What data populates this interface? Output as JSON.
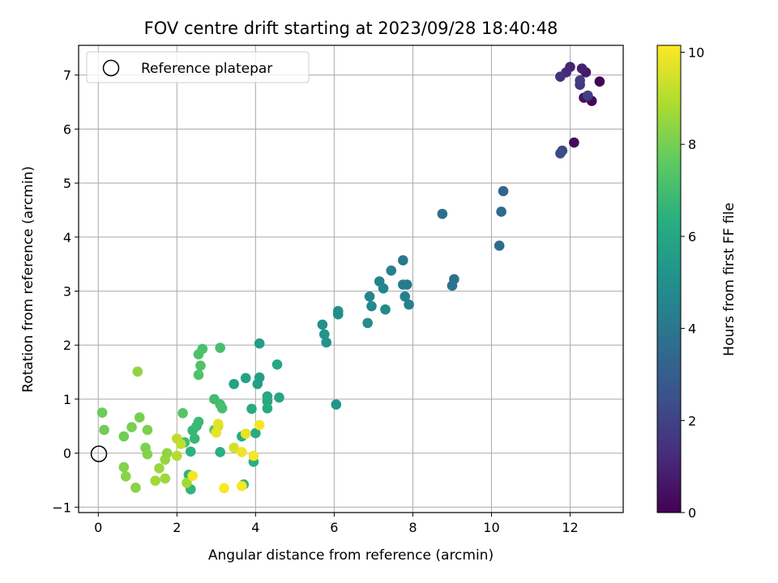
{
  "chart_data": {
    "type": "scatter",
    "title": "FOV centre drift starting at 2023/09/28 18:40:48",
    "xlabel": "Angular distance from reference (arcmin)",
    "ylabel": "Rotation from reference (arcmin)",
    "xlim": [
      -0.5,
      13.35
    ],
    "ylim": [
      -1.1,
      7.55
    ],
    "xticks": [
      "0",
      "2",
      "4",
      "6",
      "8",
      "10",
      "12"
    ],
    "yticks": [
      "−1",
      "0",
      "1",
      "2",
      "3",
      "4",
      "5",
      "6",
      "7"
    ],
    "grid": true,
    "legend": {
      "placement": "top-left",
      "entries": [
        "Reference platepar"
      ]
    },
    "reference_point": {
      "x": 0,
      "y": 0
    },
    "colorbar": {
      "label": "Hours from first FF file",
      "colormap": "viridis",
      "range": [
        0,
        10.15
      ],
      "ticks": [
        "0",
        "2",
        "4",
        "6",
        "8",
        "10"
      ]
    },
    "points": [
      {
        "x": 12.75,
        "y": 6.88,
        "c": 0.1
      },
      {
        "x": 12.55,
        "y": 6.52,
        "c": 0.2
      },
      {
        "x": 12.45,
        "y": 6.6,
        "c": 0.4
      },
      {
        "x": 12.35,
        "y": 6.58,
        "c": 0.5
      },
      {
        "x": 12.4,
        "y": 7.05,
        "c": 0.7
      },
      {
        "x": 12.3,
        "y": 7.12,
        "c": 0.9
      },
      {
        "x": 12.0,
        "y": 7.15,
        "c": 1.0
      },
      {
        "x": 11.9,
        "y": 7.05,
        "c": 1.2
      },
      {
        "x": 11.75,
        "y": 6.97,
        "c": 1.4
      },
      {
        "x": 12.25,
        "y": 6.82,
        "c": 1.6
      },
      {
        "x": 12.25,
        "y": 6.9,
        "c": 1.8
      },
      {
        "x": 12.45,
        "y": 6.62,
        "c": 1.9
      },
      {
        "x": 12.1,
        "y": 5.75,
        "c": 0.3
      },
      {
        "x": 11.8,
        "y": 5.6,
        "c": 2.1
      },
      {
        "x": 11.75,
        "y": 5.55,
        "c": 2.3
      },
      {
        "x": 10.3,
        "y": 4.85,
        "c": 3.3
      },
      {
        "x": 10.25,
        "y": 4.47,
        "c": 3.5
      },
      {
        "x": 10.2,
        "y": 3.84,
        "c": 3.6
      },
      {
        "x": 9.05,
        "y": 3.22,
        "c": 3.8
      },
      {
        "x": 9.0,
        "y": 3.1,
        "c": 3.9
      },
      {
        "x": 8.75,
        "y": 4.43,
        "c": 3.7
      },
      {
        "x": 7.75,
        "y": 3.57,
        "c": 4.0
      },
      {
        "x": 7.85,
        "y": 3.12,
        "c": 4.1
      },
      {
        "x": 7.75,
        "y": 3.12,
        "c": 4.2
      },
      {
        "x": 7.8,
        "y": 2.9,
        "c": 4.3
      },
      {
        "x": 7.9,
        "y": 2.75,
        "c": 4.3
      },
      {
        "x": 7.45,
        "y": 3.38,
        "c": 4.4
      },
      {
        "x": 7.15,
        "y": 3.18,
        "c": 4.5
      },
      {
        "x": 7.25,
        "y": 3.05,
        "c": 4.6
      },
      {
        "x": 6.9,
        "y": 2.9,
        "c": 4.6
      },
      {
        "x": 6.95,
        "y": 2.72,
        "c": 4.7
      },
      {
        "x": 7.3,
        "y": 2.66,
        "c": 4.8
      },
      {
        "x": 6.85,
        "y": 2.41,
        "c": 4.9
      },
      {
        "x": 6.1,
        "y": 2.63,
        "c": 5.0
      },
      {
        "x": 6.1,
        "y": 2.57,
        "c": 5.0
      },
      {
        "x": 5.7,
        "y": 2.38,
        "c": 5.1
      },
      {
        "x": 5.75,
        "y": 2.2,
        "c": 5.2
      },
      {
        "x": 5.8,
        "y": 2.05,
        "c": 5.2
      },
      {
        "x": 6.05,
        "y": 0.9,
        "c": 5.3
      },
      {
        "x": 4.1,
        "y": 2.03,
        "c": 5.6
      },
      {
        "x": 4.1,
        "y": 1.4,
        "c": 5.7
      },
      {
        "x": 4.05,
        "y": 1.28,
        "c": 5.7
      },
      {
        "x": 3.75,
        "y": 1.39,
        "c": 5.8
      },
      {
        "x": 3.45,
        "y": 1.28,
        "c": 5.8
      },
      {
        "x": 4.55,
        "y": 1.64,
        "c": 6.0
      },
      {
        "x": 4.6,
        "y": 1.03,
        "c": 6.0
      },
      {
        "x": 4.3,
        "y": 1.05,
        "c": 6.1
      },
      {
        "x": 4.3,
        "y": 0.96,
        "c": 6.1
      },
      {
        "x": 4.3,
        "y": 0.83,
        "c": 6.2
      },
      {
        "x": 3.9,
        "y": 0.82,
        "c": 6.2
      },
      {
        "x": 4.0,
        "y": 0.37,
        "c": 6.3
      },
      {
        "x": 3.65,
        "y": 0.31,
        "c": 6.3
      },
      {
        "x": 3.95,
        "y": -0.16,
        "c": 6.4
      },
      {
        "x": 3.7,
        "y": -0.58,
        "c": 6.5
      },
      {
        "x": 3.1,
        "y": 0.02,
        "c": 6.4
      },
      {
        "x": 2.35,
        "y": 0.03,
        "c": 6.5
      },
      {
        "x": 2.35,
        "y": -0.67,
        "c": 6.6
      },
      {
        "x": 2.3,
        "y": -0.4,
        "c": 6.6
      },
      {
        "x": 2.45,
        "y": 0.27,
        "c": 6.7
      },
      {
        "x": 2.4,
        "y": 0.42,
        "c": 6.7
      },
      {
        "x": 2.5,
        "y": 0.5,
        "c": 6.8
      },
      {
        "x": 2.55,
        "y": 0.58,
        "c": 6.8
      },
      {
        "x": 2.2,
        "y": 0.2,
        "c": 6.9
      },
      {
        "x": 2.95,
        "y": 1.0,
        "c": 7.0
      },
      {
        "x": 3.1,
        "y": 0.9,
        "c": 7.0
      },
      {
        "x": 3.15,
        "y": 0.83,
        "c": 7.1
      },
      {
        "x": 3.1,
        "y": 1.95,
        "c": 7.1
      },
      {
        "x": 2.65,
        "y": 1.93,
        "c": 7.2
      },
      {
        "x": 2.55,
        "y": 1.83,
        "c": 7.2
      },
      {
        "x": 2.6,
        "y": 1.62,
        "c": 7.3
      },
      {
        "x": 2.55,
        "y": 1.45,
        "c": 7.3
      },
      {
        "x": 2.15,
        "y": 0.74,
        "c": 7.4
      },
      {
        "x": 2.95,
        "y": 0.43,
        "c": 7.6
      },
      {
        "x": 0.1,
        "y": 0.75,
        "c": 7.8
      },
      {
        "x": 0.15,
        "y": 0.43,
        "c": 7.9
      },
      {
        "x": 0.65,
        "y": 0.31,
        "c": 7.9
      },
      {
        "x": 0.85,
        "y": 0.48,
        "c": 8.0
      },
      {
        "x": 1.05,
        "y": 0.66,
        "c": 8.0
      },
      {
        "x": 1.25,
        "y": 0.43,
        "c": 8.1
      },
      {
        "x": 1.2,
        "y": 0.1,
        "c": 8.1
      },
      {
        "x": 1.25,
        "y": -0.02,
        "c": 8.2
      },
      {
        "x": 0.65,
        "y": -0.26,
        "c": 8.2
      },
      {
        "x": 0.7,
        "y": -0.43,
        "c": 8.3
      },
      {
        "x": 0.95,
        "y": -0.64,
        "c": 8.3
      },
      {
        "x": 1.0,
        "y": 1.51,
        "c": 8.4
      },
      {
        "x": 1.75,
        "y": 0.0,
        "c": 8.4
      },
      {
        "x": 1.7,
        "y": -0.12,
        "c": 8.5
      },
      {
        "x": 1.55,
        "y": -0.28,
        "c": 8.6
      },
      {
        "x": 1.7,
        "y": -0.47,
        "c": 8.6
      },
      {
        "x": 1.45,
        "y": -0.51,
        "c": 8.7
      },
      {
        "x": 2.25,
        "y": -0.55,
        "c": 8.7
      },
      {
        "x": 2.0,
        "y": -0.05,
        "c": 9.0
      },
      {
        "x": 2.0,
        "y": 0.27,
        "c": 9.1
      },
      {
        "x": 2.1,
        "y": 0.17,
        "c": 9.2
      },
      {
        "x": 3.05,
        "y": 0.5,
        "c": 9.4
      },
      {
        "x": 3.45,
        "y": 0.1,
        "c": 9.5
      },
      {
        "x": 3.05,
        "y": 0.54,
        "c": 9.7
      },
      {
        "x": 3.75,
        "y": 0.36,
        "c": 9.8
      },
      {
        "x": 3.0,
        "y": 0.38,
        "c": 9.8
      },
      {
        "x": 3.65,
        "y": 0.02,
        "c": 9.9
      },
      {
        "x": 3.95,
        "y": -0.05,
        "c": 10.0
      },
      {
        "x": 4.1,
        "y": 0.52,
        "c": 10.0
      },
      {
        "x": 3.2,
        "y": -0.65,
        "c": 10.1
      },
      {
        "x": 3.65,
        "y": -0.61,
        "c": 10.1
      },
      {
        "x": 2.4,
        "y": -0.42,
        "c": 10.0
      }
    ]
  }
}
